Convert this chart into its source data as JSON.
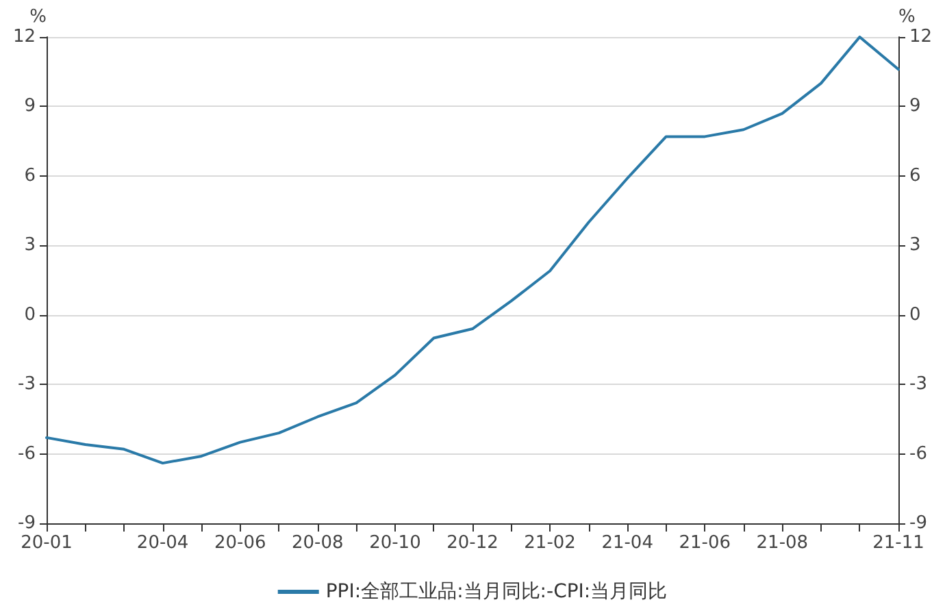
{
  "chart_data": {
    "type": "line",
    "ylabel": "%",
    "y2label": "%",
    "categories": [
      "20-01",
      null,
      null,
      "20-04",
      null,
      "20-06",
      null,
      "20-08",
      null,
      "20-10",
      null,
      "20-12",
      null,
      "21-02",
      null,
      "21-04",
      null,
      "21-06",
      null,
      "21-08",
      null,
      null,
      "21-11"
    ],
    "series": [
      {
        "name": "PPI:全部工业品:当月同比:-CPI:当月同比",
        "color": "#2a7aa8",
        "values": [
          -5.3,
          -5.6,
          -5.8,
          -6.4,
          -6.1,
          -5.5,
          -5.1,
          -4.4,
          -3.8,
          -2.6,
          -1.0,
          -0.6,
          0.6,
          1.9,
          4.0,
          5.9,
          7.7,
          7.7,
          8.0,
          8.7,
          10.0,
          12.0,
          10.6
        ]
      }
    ],
    "ylim": [
      -9,
      12
    ],
    "yticks": [
      -9,
      -6,
      -3,
      0,
      3,
      6,
      9,
      12
    ],
    "y2lim": [
      -9,
      12
    ],
    "y2ticks": [
      -9,
      -6,
      -3,
      0,
      3,
      6,
      9,
      12
    ],
    "grid": "y",
    "legend": "bottom",
    "marker": "none",
    "line_style": "solid"
  }
}
